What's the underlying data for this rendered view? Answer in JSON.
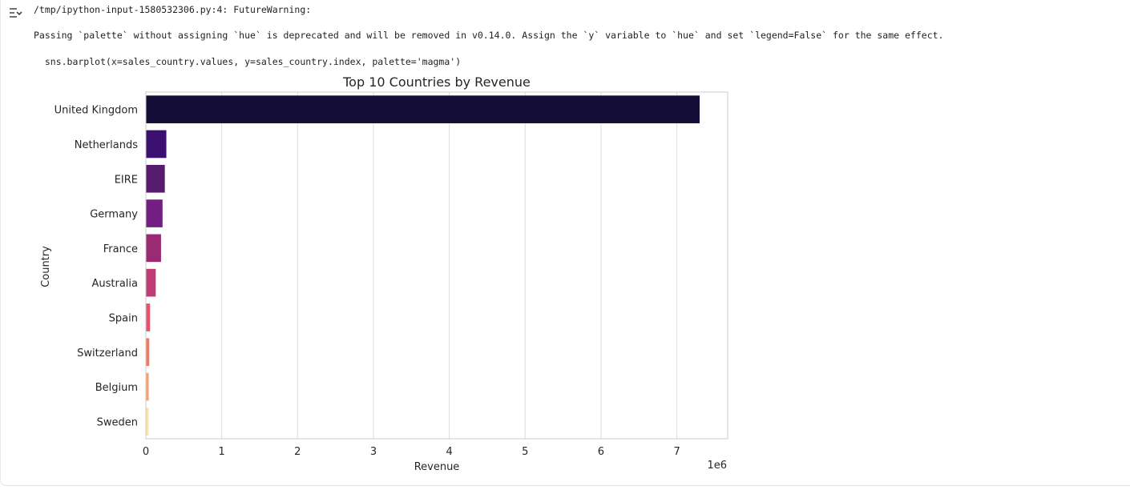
{
  "output": {
    "warning_header": "/tmp/ipython-input-1580532306.py:4: FutureWarning:",
    "warning_message": "Passing `palette` without assigning `hue` is deprecated and will be removed in v0.14.0. Assign the `y` variable to `hue` and set `legend=False` for the same effect.",
    "code_line": "  sns.barplot(x=sales_country.values, y=sales_country.index, palette='magma')",
    "icon": "output-toggle-icon"
  },
  "chart_data": {
    "type": "bar",
    "orientation": "horizontal",
    "title": "Top 10 Countries by Revenue",
    "xlabel": "Revenue",
    "ylabel": "Country",
    "x_offset_label": "1e6",
    "categories": [
      "United Kingdom",
      "Netherlands",
      "EIRE",
      "Germany",
      "France",
      "Australia",
      "Spain",
      "Switzerland",
      "Belgium",
      "Sweden"
    ],
    "values": [
      7.3,
      0.27,
      0.25,
      0.22,
      0.2,
      0.13,
      0.055,
      0.045,
      0.038,
      0.036
    ],
    "colors": [
      "#140e36",
      "#3b0f70",
      "#561a6e",
      "#721f81",
      "#9a2a74",
      "#c03a76",
      "#e4536b",
      "#f4785e",
      "#fc9f6f",
      "#fde2a3"
    ],
    "xticks": [
      0,
      1,
      2,
      3,
      4,
      5,
      6,
      7
    ],
    "xlim": [
      0,
      7.67
    ],
    "grid": "vertical"
  }
}
